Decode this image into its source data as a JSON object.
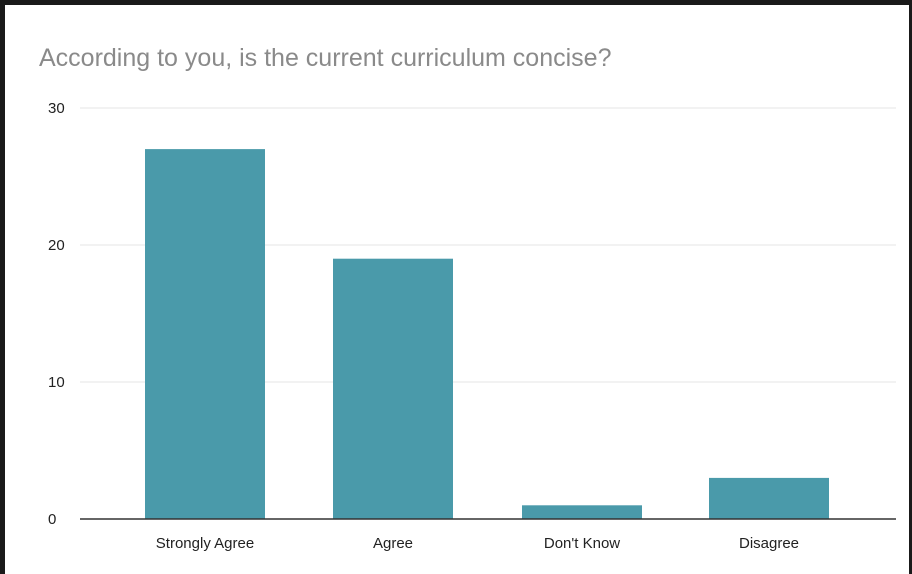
{
  "chart_data": {
    "type": "bar",
    "title": "According to you, is the current curriculum concise?",
    "categories": [
      "Strongly Agree",
      "Agree",
      "Don't Know",
      "Disagree"
    ],
    "values": [
      27,
      19,
      1,
      3
    ],
    "ylim": [
      0,
      30
    ],
    "yticks": [
      "0",
      "10",
      "20",
      "30"
    ],
    "grid": true,
    "bar_color": "#4a9aaa"
  }
}
